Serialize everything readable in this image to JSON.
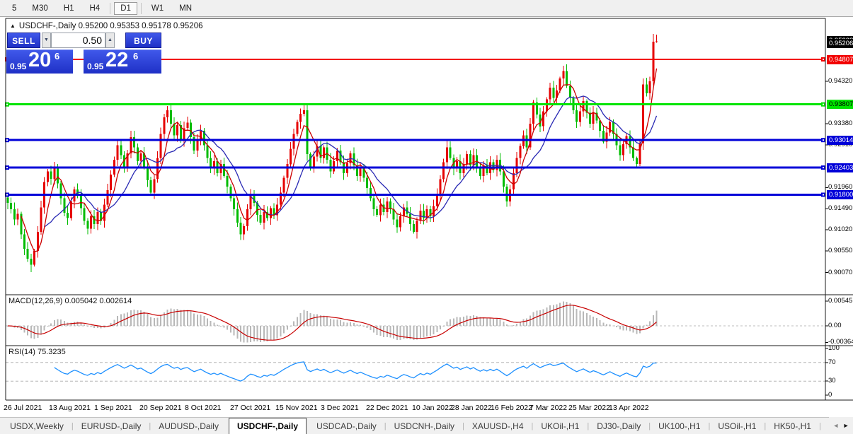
{
  "toolbar": {
    "timeframes": [
      "5",
      "M30",
      "H1",
      "H4",
      "D1",
      "W1",
      "MN"
    ],
    "active_timeframe": "D1"
  },
  "chart": {
    "title": {
      "symbol": "USDCHF-,Daily",
      "ohlc_text": "0.95200 0.95353 0.95178 0.95206"
    },
    "trade_panel": {
      "sell_label": "SELL",
      "buy_label": "BUY",
      "lot_size": "0.50",
      "sell_price": {
        "big_figure": "0.95",
        "pips": "20",
        "pipette": "6"
      },
      "buy_price": {
        "big_figure": "0.95",
        "pips": "22",
        "pipette": "6"
      }
    },
    "bid_badge": {
      "label": "0.95206",
      "price": 0.95206,
      "bg": "#000000",
      "fg": "#ffffff"
    },
    "ask_badge": {
      "label": "0.95228",
      "price": 0.95228,
      "bg": "#000000",
      "fg": "#ffffff"
    },
    "hlines": [
      {
        "price": 0.94807,
        "label": "0.94807",
        "color": "#f20000",
        "text": "#ffffff",
        "thickness": 2
      },
      {
        "price": 0.93807,
        "label": "0.93807",
        "color": "#00e400",
        "text": "#000000",
        "thickness": 3
      },
      {
        "price": 0.93014,
        "label": "0.93014",
        "color": "#0000d8",
        "text": "#ffffff",
        "thickness": 3
      },
      {
        "price": 0.92403,
        "label": "0.92403",
        "color": "#0000d8",
        "text": "#ffffff",
        "thickness": 3
      },
      {
        "price": 0.918,
        "label": "0.91800",
        "color": "#0000d8",
        "text": "#ffffff",
        "thickness": 3
      }
    ],
    "price_ticks": [
      {
        "v": 0.9432,
        "label": "0.94320"
      },
      {
        "v": 0.9338,
        "label": "0.93380"
      },
      {
        "v": 0.9291,
        "label": "0.92910"
      },
      {
        "v": 0.9196,
        "label": "0.91960"
      },
      {
        "v": 0.9149,
        "label": "0.91490"
      },
      {
        "v": 0.9102,
        "label": "0.91020"
      },
      {
        "v": 0.9055,
        "label": "0.90550"
      },
      {
        "v": 0.9007,
        "label": "0.90070"
      }
    ],
    "date_labels": [
      "26 Jul 2021",
      "13 Aug 2021",
      "1 Sep 2021",
      "20 Sep 2021",
      "8 Oct 2021",
      "27 Oct 2021",
      "15 Nov 2021",
      "3 Dec 2021",
      "22 Dec 2021",
      "10 Jan 2022",
      "28 Jan 2022",
      "16 Feb 2022",
      "7 Mar 2022",
      "25 Mar 2022",
      "13 Apr 2022"
    ]
  },
  "chart_data": {
    "type": "candlestick",
    "title": "USDCHF-,Daily",
    "current_bar": {
      "open": 0.952,
      "high": 0.95353,
      "low": 0.95178,
      "close": 0.95206
    },
    "first_open": 0.9174,
    "closes": [
      0.9162,
      0.9148,
      0.9125,
      0.9138,
      0.9092,
      0.906,
      0.9038,
      0.9025,
      0.9055,
      0.9098,
      0.9152,
      0.9208,
      0.9232,
      0.9215,
      0.9238,
      0.9205,
      0.9172,
      0.914,
      0.9128,
      0.9165,
      0.9192,
      0.9178,
      0.915,
      0.9122,
      0.9105,
      0.9132,
      0.9115,
      0.9142,
      0.9122,
      0.9158,
      0.919,
      0.9225,
      0.9258,
      0.929,
      0.9268,
      0.9242,
      0.9272,
      0.9308,
      0.9285,
      0.9255,
      0.9272,
      0.9242,
      0.9212,
      0.9185,
      0.9215,
      0.9262,
      0.9315,
      0.9352,
      0.9368,
      0.9338,
      0.9312,
      0.9335,
      0.9302,
      0.9328,
      0.934,
      0.9308,
      0.9278,
      0.93,
      0.9322,
      0.929,
      0.9262,
      0.9238,
      0.9255,
      0.9228,
      0.9248,
      0.9222,
      0.9198,
      0.9172,
      0.9148,
      0.9118,
      0.9092,
      0.911,
      0.9148,
      0.9178,
      0.9162,
      0.9135,
      0.9118,
      0.9142,
      0.9128,
      0.915,
      0.9135,
      0.9158,
      0.9185,
      0.9218,
      0.9248,
      0.9282,
      0.9315,
      0.9342,
      0.936,
      0.9368,
      0.927,
      0.9242,
      0.9265,
      0.9288,
      0.9262,
      0.9285,
      0.9258,
      0.9232,
      0.9255,
      0.9278,
      0.9252,
      0.9228,
      0.925,
      0.9272,
      0.9245,
      0.9222,
      0.9242,
      0.9218,
      0.9195,
      0.9172,
      0.9148,
      0.9135,
      0.9158,
      0.9142,
      0.9165,
      0.9148,
      0.9125,
      0.9108,
      0.9132,
      0.9152,
      0.9138,
      0.9115,
      0.9098,
      0.9122,
      0.9145,
      0.9128,
      0.9148,
      0.9132,
      0.9155,
      0.918,
      0.9215,
      0.9252,
      0.9285,
      0.9262,
      0.9238,
      0.9255,
      0.9228,
      0.9248,
      0.927,
      0.9245,
      0.9268,
      0.9242,
      0.9222,
      0.9245,
      0.9228,
      0.9252,
      0.9235,
      0.9258,
      0.9232,
      0.9198,
      0.9165,
      0.9192,
      0.9228,
      0.9262,
      0.9288,
      0.9312,
      0.9285,
      0.9338,
      0.9385,
      0.9358,
      0.9332,
      0.9365,
      0.9392,
      0.9418,
      0.9395,
      0.9412,
      0.9438,
      0.9455,
      0.9422,
      0.9395,
      0.9368,
      0.9342,
      0.9365,
      0.9388,
      0.9362,
      0.9338,
      0.9362,
      0.9345,
      0.9322,
      0.9298,
      0.9318,
      0.9342,
      0.9315,
      0.929,
      0.9268,
      0.9292,
      0.931,
      0.9285,
      0.9262,
      0.9248,
      0.9295,
      0.9425,
      0.9405,
      0.9432,
      0.952,
      0.95206
    ],
    "moving_averages": [
      {
        "name": "ma-fast",
        "period": 5,
        "color": "#cc0000"
      },
      {
        "name": "ma-slow",
        "period": 12,
        "color": "#2a2ab4"
      }
    ],
    "indicators": {
      "macd": {
        "title_text": "MACD(12,26,9) 0.005042 0.002614",
        "params": [
          12,
          26,
          9
        ],
        "main_value": 0.005042,
        "signal_value": 0.002614,
        "scale_labels": [
          {
            "v": 0.00545,
            "label": "0.00545"
          },
          {
            "v": 0.0,
            "label": "0.00"
          },
          {
            "v": -0.00364,
            "label": "-0.00364"
          }
        ],
        "hist_color": "#b8b8b8",
        "signal_color": "#c80000"
      },
      "rsi": {
        "title_text": "RSI(14) 75.3235",
        "period": 14,
        "value": 75.3235,
        "scale_labels": [
          {
            "v": 100,
            "label": "100"
          },
          {
            "v": 70,
            "label": "70"
          },
          {
            "v": 30,
            "label": "30"
          },
          {
            "v": 0,
            "label": "0"
          }
        ],
        "levels": [
          70,
          30
        ],
        "line_color": "#1e90ff"
      }
    },
    "colors": {
      "bull": "#e60000",
      "bear": "#00bc00"
    },
    "price_axis_range": [
      0.899,
      0.956
    ]
  },
  "tabs": {
    "items": [
      "USDX,Weekly",
      "EURUSD-,Daily",
      "AUDUSD-,Daily",
      "USDCHF-,Daily",
      "USDCAD-,Daily",
      "USDCNH-,Daily",
      "XAUUSD-,H4",
      "UKOil-,H1",
      "DJ30-,Daily",
      "UK100-,H1",
      "USOil-,H1",
      "HK50-,H1",
      "EU"
    ],
    "active": "USDCHF-,Daily",
    "scroll_left": "◄",
    "scroll_right": "►"
  }
}
